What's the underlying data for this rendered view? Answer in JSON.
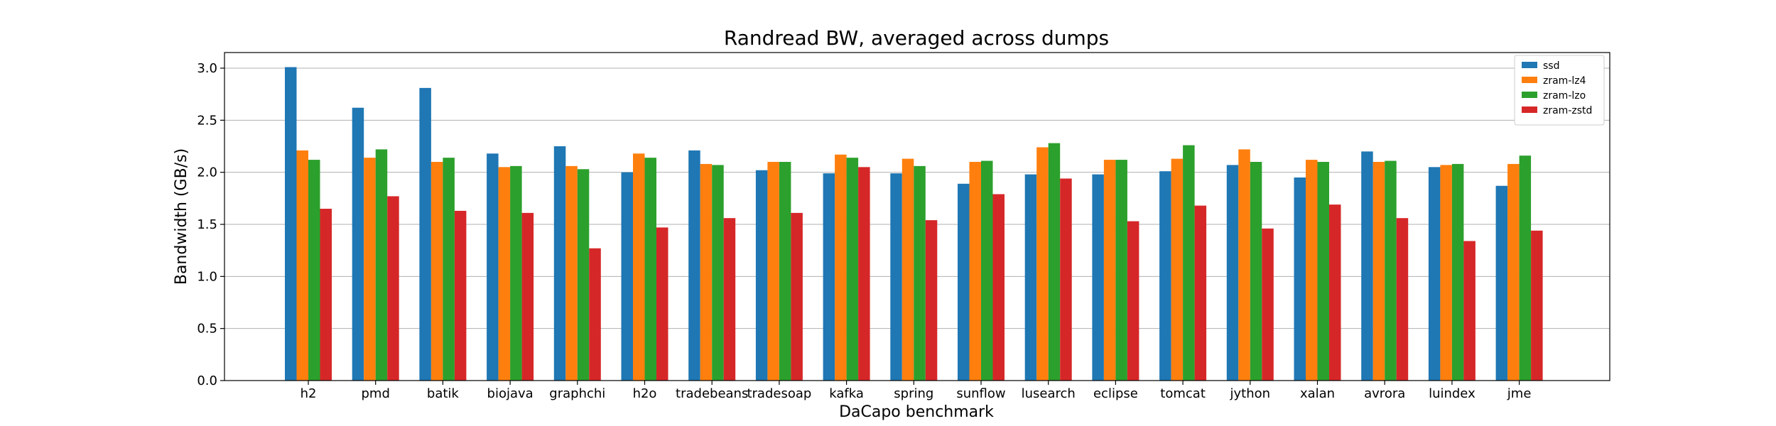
{
  "chart_data": {
    "type": "bar",
    "title": "Randread BW, averaged across dumps",
    "xlabel": "DaCapo benchmark",
    "ylabel": "Bandwidth (GB/s)",
    "ylim": [
      0,
      3.15
    ],
    "yticks": [
      0.0,
      0.5,
      1.0,
      1.5,
      2.0,
      2.5,
      3.0
    ],
    "ytick_labels": [
      "0.0",
      "0.5",
      "1.0",
      "1.5",
      "2.0",
      "2.5",
      "3.0"
    ],
    "grid": "horizontal",
    "legend_position": "top-right",
    "categories": [
      "h2",
      "pmd",
      "batik",
      "biojava",
      "graphchi",
      "h2o",
      "tradebeans",
      "tradesoap",
      "kafka",
      "spring",
      "sunflow",
      "lusearch",
      "eclipse",
      "tomcat",
      "jython",
      "xalan",
      "avrora",
      "luindex",
      "jme"
    ],
    "series": [
      {
        "name": "ssd",
        "color": "#1f77b4",
        "values": [
          3.01,
          2.62,
          2.81,
          2.18,
          2.25,
          2.0,
          2.21,
          2.02,
          1.99,
          1.99,
          1.89,
          1.98,
          1.98,
          2.01,
          2.07,
          1.95,
          2.2,
          2.05,
          1.87
        ]
      },
      {
        "name": "zram-lz4",
        "color": "#ff7f0e",
        "values": [
          2.21,
          2.14,
          2.1,
          2.05,
          2.06,
          2.18,
          2.08,
          2.1,
          2.17,
          2.13,
          2.1,
          2.24,
          2.12,
          2.13,
          2.22,
          2.12,
          2.1,
          2.07,
          2.08
        ]
      },
      {
        "name": "zram-lzo",
        "color": "#2ca02c",
        "values": [
          2.12,
          2.22,
          2.14,
          2.06,
          2.03,
          2.14,
          2.07,
          2.1,
          2.14,
          2.06,
          2.11,
          2.28,
          2.12,
          2.26,
          2.1,
          2.1,
          2.11,
          2.08,
          2.16
        ]
      },
      {
        "name": "zram-zstd",
        "color": "#d62728",
        "values": [
          1.65,
          1.77,
          1.63,
          1.61,
          1.27,
          1.47,
          1.56,
          1.61,
          2.05,
          1.54,
          1.79,
          1.94,
          1.53,
          1.68,
          1.46,
          1.69,
          1.56,
          1.34,
          1.44
        ]
      }
    ]
  }
}
